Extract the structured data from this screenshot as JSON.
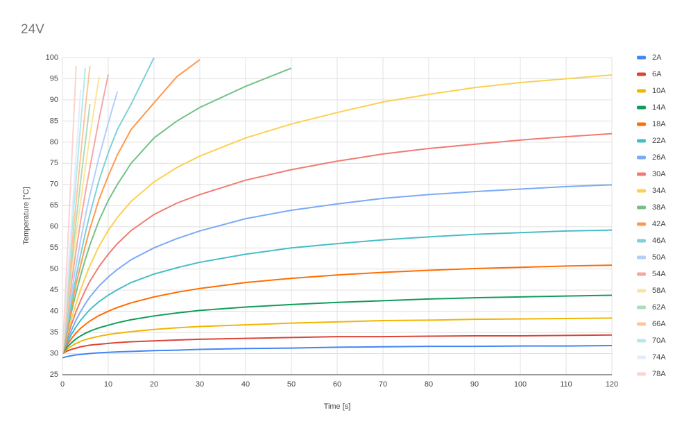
{
  "chart_data": {
    "type": "line",
    "title": "24V",
    "x_label": "Time [s]",
    "y_label": "Temperature [°C]",
    "x": [
      0,
      1,
      2,
      3,
      4,
      5,
      6,
      8,
      10,
      12,
      15,
      20,
      25,
      30,
      40,
      50,
      60,
      70,
      80,
      90,
      100,
      110,
      120
    ],
    "xlim": [
      0,
      120
    ],
    "xticks": [
      0,
      10,
      20,
      30,
      40,
      50,
      60,
      70,
      80,
      90,
      100,
      110,
      120
    ],
    "ylim": [
      25,
      100
    ],
    "yticks": [
      25,
      30,
      35,
      40,
      45,
      50,
      55,
      60,
      65,
      70,
      75,
      80,
      85,
      90,
      95,
      100
    ],
    "grid": true,
    "legend": "right",
    "series": [
      {
        "name": "2A",
        "color": "#4285f4",
        "values": [
          29,
          29.3,
          29.5,
          29.7,
          29.8,
          29.9,
          30,
          30.2,
          30.3,
          30.4,
          30.5,
          30.7,
          30.8,
          31,
          31.2,
          31.3,
          31.5,
          31.6,
          31.7,
          31.7,
          31.8,
          31.8,
          31.9
        ]
      },
      {
        "name": "6A",
        "color": "#db4437",
        "values": [
          30,
          30.6,
          31,
          31.3,
          31.6,
          31.8,
          32,
          32.2,
          32.4,
          32.6,
          32.8,
          33,
          33.2,
          33.4,
          33.6,
          33.8,
          34,
          34,
          34.1,
          34.2,
          34.2,
          34.3,
          34.4
        ]
      },
      {
        "name": "10A",
        "color": "#f4b400",
        "values": [
          30,
          31,
          31.8,
          32.4,
          32.9,
          33.3,
          33.6,
          34.1,
          34.5,
          34.8,
          35.2,
          35.7,
          36.1,
          36.4,
          36.8,
          37.2,
          37.5,
          37.8,
          37.9,
          38.1,
          38.2,
          38.3,
          38.4
        ]
      },
      {
        "name": "14A",
        "color": "#0f9d58",
        "values": [
          30,
          31.5,
          32.6,
          33.5,
          34.2,
          34.8,
          35.3,
          36.1,
          36.7,
          37.3,
          38,
          38.9,
          39.6,
          40.2,
          41,
          41.6,
          42.1,
          42.5,
          42.9,
          43.2,
          43.4,
          43.6,
          43.8
        ]
      },
      {
        "name": "18A",
        "color": "#ff6d01",
        "values": [
          30,
          32,
          33.6,
          34.9,
          36,
          36.9,
          37.7,
          39,
          40,
          40.9,
          42,
          43.4,
          44.5,
          45.4,
          46.8,
          47.8,
          48.6,
          49.2,
          49.7,
          50.1,
          50.4,
          50.7,
          50.9
        ]
      },
      {
        "name": "22A",
        "color": "#46bdc6",
        "values": [
          30,
          32.5,
          34.6,
          36.4,
          37.9,
          39.2,
          40.4,
          42.3,
          43.8,
          45.1,
          46.8,
          48.8,
          50.3,
          51.6,
          53.5,
          55,
          56,
          56.9,
          57.6,
          58.2,
          58.6,
          59,
          59.2
        ]
      },
      {
        "name": "26A",
        "color": "#7baaf7",
        "values": [
          30,
          33,
          35.6,
          38,
          40,
          41.8,
          43.4,
          46,
          48.1,
          49.9,
          52.2,
          55,
          57.2,
          59,
          61.9,
          63.9,
          65.4,
          66.7,
          67.6,
          68.3,
          68.9,
          69.5,
          69.9
        ]
      },
      {
        "name": "30A",
        "color": "#f07b72",
        "values": [
          30,
          33.7,
          37,
          40,
          42.6,
          45,
          47.1,
          50.6,
          53.5,
          56,
          59.1,
          62.9,
          65.6,
          67.6,
          71,
          73.5,
          75.5,
          77.2,
          78.5,
          79.5,
          80.5,
          81.3,
          82
        ]
      },
      {
        "name": "34A",
        "color": "#fcd04f",
        "values": [
          30,
          34.4,
          38.3,
          41.9,
          45.2,
          48.1,
          50.8,
          55.4,
          59.1,
          62.2,
          66,
          70.6,
          74,
          76.7,
          81,
          84.3,
          87,
          89.5,
          91.3,
          92.9,
          94.1,
          95,
          95.9
        ]
      },
      {
        "name": "38A",
        "color": "#71c287",
        "values": [
          30,
          35,
          40,
          44.5,
          48.6,
          52.3,
          55.7,
          61.5,
          66.2,
          70,
          75,
          81,
          85,
          88.2,
          93.2,
          97.5,
          null,
          null,
          null,
          null,
          null,
          null,
          null
        ]
      },
      {
        "name": "42A",
        "color": "#ff994d",
        "values": [
          30,
          35.7,
          41.3,
          46.5,
          51,
          55.5,
          59.5,
          66.5,
          72,
          77,
          83,
          89.3,
          95.5,
          99.5,
          null,
          null,
          null,
          null,
          null,
          null,
          null,
          null,
          null
        ]
      },
      {
        "name": "46A",
        "color": "#7ed1d7",
        "values": [
          30,
          36.5,
          42.6,
          48.3,
          53.5,
          58.5,
          63,
          71,
          77.5,
          83,
          89,
          100,
          null,
          null,
          null,
          null,
          null,
          null,
          null,
          null,
          null,
          null,
          null
        ]
      },
      {
        "name": "50A",
        "color": "#b3cefb",
        "values": [
          30,
          37.5,
          44.5,
          51,
          57,
          62.5,
          67.5,
          76.5,
          84.5,
          92,
          null,
          null,
          null,
          null,
          null,
          null,
          null,
          null,
          null,
          null,
          null,
          null,
          null
        ]
      },
      {
        "name": "54A",
        "color": "#f7a7a0",
        "values": [
          30,
          39,
          47,
          54.5,
          61.5,
          68,
          74,
          85.5,
          96,
          null,
          null,
          null,
          null,
          null,
          null,
          null,
          null,
          null,
          null,
          null,
          null,
          null,
          null
        ]
      },
      {
        "name": "58A",
        "color": "#fde49b",
        "values": [
          30,
          40,
          49.5,
          58,
          66,
          74,
          81.5,
          95.5,
          null,
          null,
          null,
          null,
          null,
          null,
          null,
          null,
          null,
          null,
          null,
          null,
          null,
          null,
          null
        ]
      },
      {
        "name": "62A",
        "color": "#aedcba",
        "values": [
          30,
          41,
          51.5,
          61.5,
          71,
          80,
          89,
          null,
          null,
          null,
          null,
          null,
          null,
          null,
          null,
          null,
          null,
          null,
          null,
          null,
          null,
          null,
          null
        ]
      },
      {
        "name": "66A",
        "color": "#ffc599",
        "values": [
          30,
          42.5,
          54.5,
          66,
          77,
          88,
          98,
          null,
          null,
          null,
          null,
          null,
          null,
          null,
          null,
          null,
          null,
          null,
          null,
          null,
          null,
          null,
          null
        ]
      },
      {
        "name": "70A",
        "color": "#b5e8ec",
        "values": [
          30,
          44,
          58,
          71.5,
          84.5,
          97.5,
          null,
          null,
          null,
          null,
          null,
          null,
          null,
          null,
          null,
          null,
          null,
          null,
          null,
          null,
          null,
          null,
          null
        ]
      },
      {
        "name": "74A",
        "color": "#e1ecfd",
        "values": [
          30,
          46,
          61.5,
          77,
          92.5,
          null,
          null,
          null,
          null,
          null,
          null,
          null,
          null,
          null,
          null,
          null,
          null,
          null,
          null,
          null,
          null,
          null,
          null
        ]
      },
      {
        "name": "78A",
        "color": "#fbd3d0",
        "values": [
          30,
          52,
          75,
          98,
          null,
          null,
          null,
          null,
          null,
          null,
          null,
          null,
          null,
          null,
          null,
          null,
          null,
          null,
          null,
          null,
          null,
          null,
          null
        ]
      }
    ]
  }
}
